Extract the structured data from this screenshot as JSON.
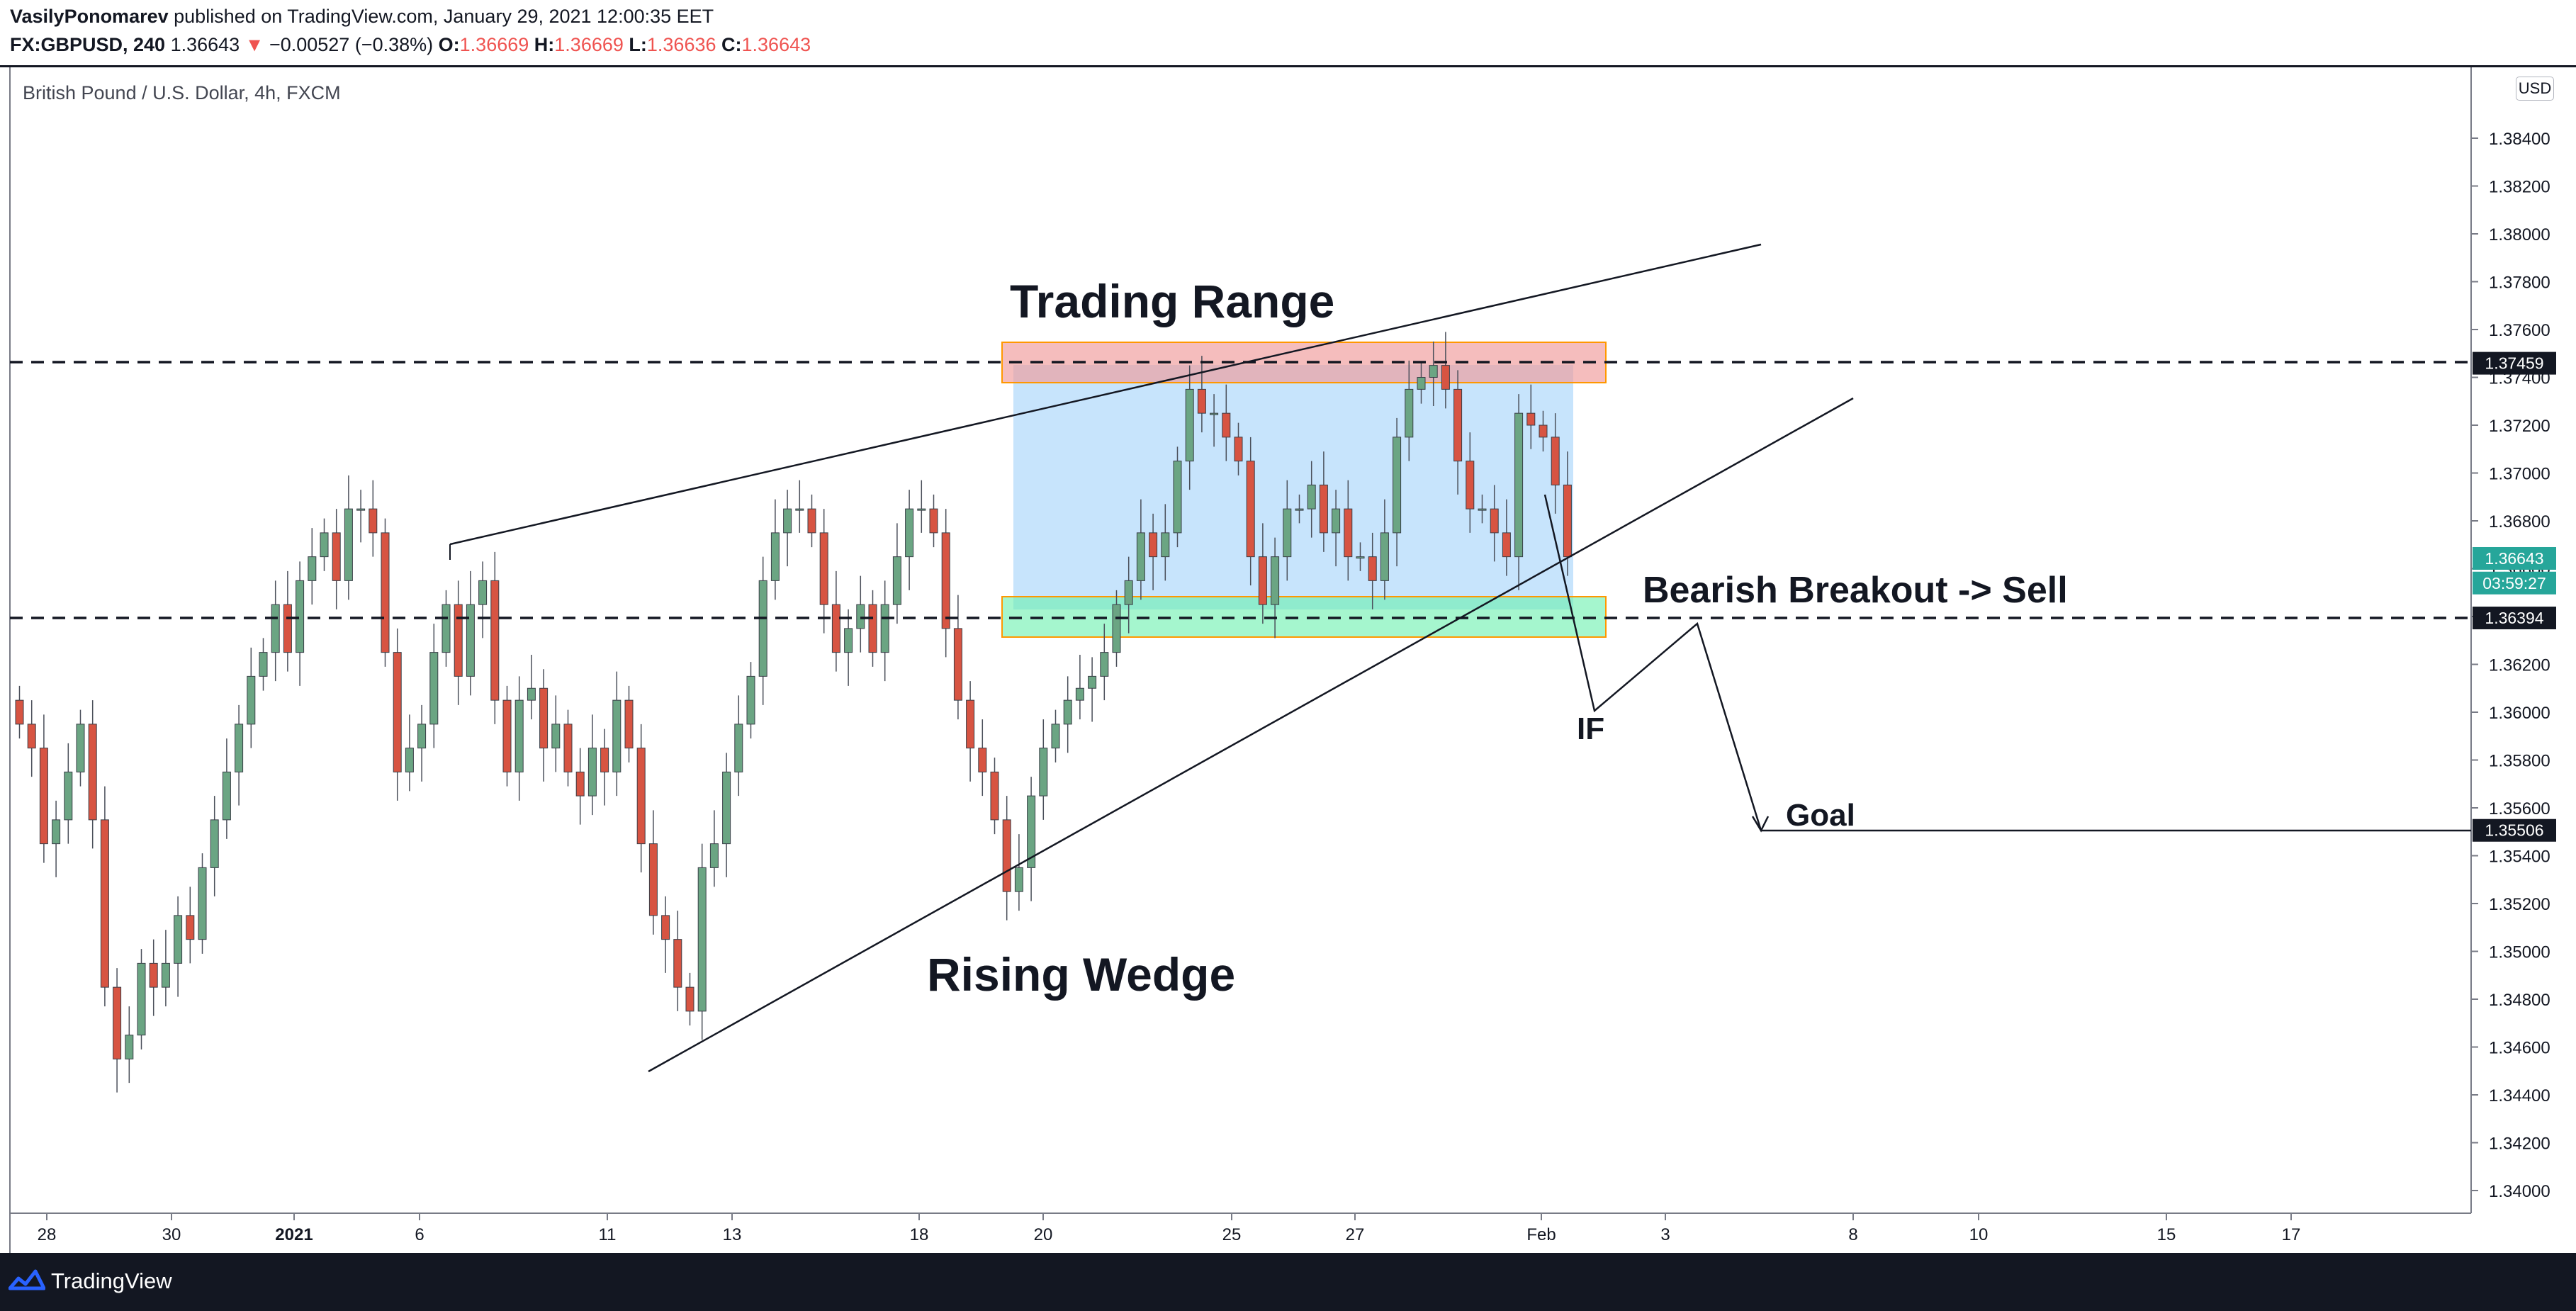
{
  "header": {
    "author": "VasilyPonomarev",
    "published_text": "published on TradingView.com, January 29, 2021 12:00:35 EET",
    "symbol": "FX:GBPUSD, 240",
    "last": "1.36643",
    "change_arrow": "▼",
    "change": "−0.00527 (−0.38%)",
    "o_label": "O:",
    "o_value": "1.36669",
    "h_label": "H:",
    "h_value": "1.36669",
    "l_label": "L:",
    "l_value": "1.36636",
    "c_label": "C:",
    "c_value": "1.36643"
  },
  "footer": {
    "brand": "TradingView"
  },
  "chart_data": {
    "type": "candlestick",
    "title": "British Pound / U.S. Dollar, 4h, FXCM",
    "currency": "USD",
    "ylim": [
      1.339,
      1.3865
    ],
    "y_ticks": [
      "1.38400",
      "1.38200",
      "1.38000",
      "1.37800",
      "1.37600",
      "1.37400",
      "1.37200",
      "1.37000",
      "1.36800",
      "1.36600",
      "1.36400",
      "1.36200",
      "1.36000",
      "1.35800",
      "1.35600",
      "1.35400",
      "1.35200",
      "1.35000",
      "1.34800",
      "1.34600",
      "1.34400",
      "1.34200",
      "1.34000"
    ],
    "x_ticks": [
      "28",
      "30",
      "2021",
      "6",
      "11",
      "13",
      "18",
      "20",
      "25",
      "27",
      "Feb",
      "3",
      "8",
      "10",
      "15",
      "17"
    ],
    "price_labels": [
      {
        "value": "1.37459",
        "price": 1.37459,
        "bg": "#131722",
        "fg": "#ffffff"
      },
      {
        "value": "1.36643",
        "price": 1.36643,
        "bg": "#26a69a",
        "fg": "#ffffff"
      },
      {
        "value": "03:59:27",
        "price": 1.3654,
        "bg": "#26a69a",
        "fg": "#ffffff"
      },
      {
        "value": "1.36394",
        "price": 1.36394,
        "bg": "#131722",
        "fg": "#ffffff"
      },
      {
        "value": "1.35506",
        "price": 1.35506,
        "bg": "#131722",
        "fg": "#ffffff"
      }
    ],
    "annotations": {
      "trading_range": "Trading Range",
      "rising_wedge": "Rising Wedge",
      "bearish_breakout": "Bearish Breakout -> Sell",
      "if_label": "IF",
      "goal": "Goal"
    },
    "levels": {
      "resistance": 1.37459,
      "support": 1.36394,
      "goal": 1.35506
    },
    "zones": {
      "range_box": {
        "color": "#90caf9"
      },
      "resistance_zone": {
        "color": "#ef9a9a",
        "border": "#ff9800"
      },
      "support_zone": {
        "color": "#69f0ae",
        "border": "#ff9800"
      }
    },
    "colors": {
      "up": "#6ba583",
      "down": "#d75442",
      "line": "#131722"
    },
    "closes": [
      1.3595,
      1.3585,
      1.3545,
      1.3555,
      1.3575,
      1.3595,
      1.3555,
      1.3485,
      1.3455,
      1.3465,
      1.3495,
      1.3485,
      1.3495,
      1.3515,
      1.3505,
      1.3535,
      1.3555,
      1.3575,
      1.3595,
      1.3615,
      1.3625,
      1.3645,
      1.3625,
      1.3655,
      1.3665,
      1.3675,
      1.3655,
      1.3685,
      1.3685,
      1.3675,
      1.3625,
      1.3575,
      1.3585,
      1.3595,
      1.3625,
      1.3645,
      1.3615,
      1.3645,
      1.3655,
      1.3605,
      1.3575,
      1.3605,
      1.361,
      1.3585,
      1.3595,
      1.3575,
      1.3565,
      1.3585,
      1.3575,
      1.3605,
      1.3585,
      1.3545,
      1.3515,
      1.3505,
      1.3485,
      1.3475,
      1.3535,
      1.3545,
      1.3575,
      1.3595,
      1.3615,
      1.3655,
      1.3675,
      1.3685,
      1.3685,
      1.3675,
      1.3645,
      1.3625,
      1.3635,
      1.3645,
      1.3625,
      1.3645,
      1.3665,
      1.3685,
      1.3685,
      1.3675,
      1.3635,
      1.3605,
      1.3585,
      1.3575,
      1.3555,
      1.3525,
      1.3535,
      1.3565,
      1.3585,
      1.3595,
      1.3605,
      1.361,
      1.3615,
      1.3625,
      1.3645,
      1.3655,
      1.3675,
      1.3665,
      1.3675,
      1.3705,
      1.3735,
      1.3725,
      1.3725,
      1.3715,
      1.3705,
      1.3665,
      1.3645,
      1.3665,
      1.3685,
      1.3685,
      1.3695,
      1.3675,
      1.3685,
      1.3665,
      1.3665,
      1.3655,
      1.3675,
      1.3715,
      1.3735,
      1.374,
      1.3745,
      1.3735,
      1.3705,
      1.3685,
      1.3685,
      1.3675,
      1.3665,
      1.3725,
      1.372,
      1.3715,
      1.3695,
      1.3665
    ],
    "opens_offset_note": ""
  }
}
